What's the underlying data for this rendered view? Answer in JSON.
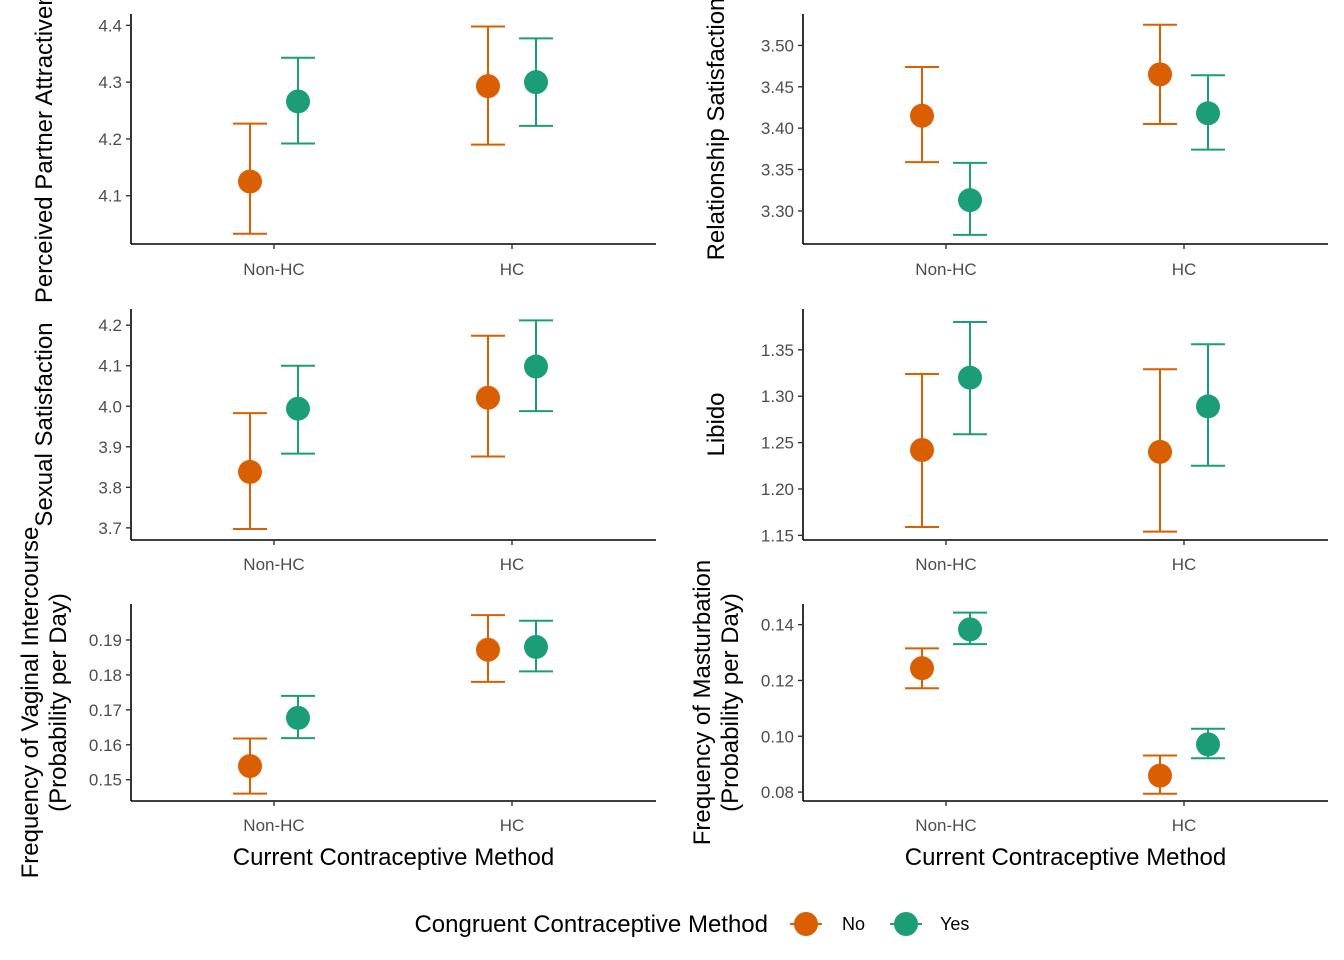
{
  "legend": {
    "title": "Congruent Contraceptive Method",
    "items": [
      {
        "label": "No",
        "color": "#D95F02"
      },
      {
        "label": "Yes",
        "color": "#1B9E77"
      }
    ]
  },
  "chart_data": [
    {
      "type": "scatter",
      "ylabel": [
        "Perceived Partner Attractiveness"
      ],
      "xlabel": "",
      "categories": [
        "Non-HC",
        "HC"
      ],
      "ylim": [
        4.015,
        4.42
      ],
      "yticks": [
        4.1,
        4.2,
        4.3,
        4.4
      ],
      "ytick_labels": [
        "4.1",
        "4.2",
        "4.3",
        "4.4"
      ],
      "series": [
        {
          "name": "No",
          "values": [
            4.125,
            4.293
          ],
          "lower": [
            4.033,
            4.19
          ],
          "upper": [
            4.227,
            4.398
          ]
        },
        {
          "name": "Yes",
          "values": [
            4.266,
            4.3
          ],
          "lower": [
            4.192,
            4.223
          ],
          "upper": [
            4.343,
            4.377
          ]
        }
      ]
    },
    {
      "type": "scatter",
      "ylabel": [
        "Relationship Satisfaction"
      ],
      "xlabel": "",
      "categories": [
        "Non-HC",
        "HC"
      ],
      "ylim": [
        3.26,
        3.538
      ],
      "yticks": [
        3.3,
        3.35,
        3.4,
        3.45,
        3.5
      ],
      "ytick_labels": [
        "3.30",
        "3.35",
        "3.40",
        "3.45",
        "3.50"
      ],
      "series": [
        {
          "name": "No",
          "values": [
            3.415,
            3.465
          ],
          "lower": [
            3.359,
            3.405
          ],
          "upper": [
            3.474,
            3.525
          ]
        },
        {
          "name": "Yes",
          "values": [
            3.313,
            3.418
          ],
          "lower": [
            3.271,
            3.374
          ],
          "upper": [
            3.358,
            3.464
          ]
        }
      ]
    },
    {
      "type": "scatter",
      "ylabel": [
        "Sexual Satisfaction"
      ],
      "xlabel": "",
      "categories": [
        "Non-HC",
        "HC"
      ],
      "ylim": [
        3.67,
        4.24
      ],
      "yticks": [
        3.7,
        3.8,
        3.9,
        4.0,
        4.1,
        4.2
      ],
      "ytick_labels": [
        "3.7",
        "3.8",
        "3.9",
        "4.0",
        "4.1",
        "4.2"
      ],
      "series": [
        {
          "name": "No",
          "values": [
            3.838,
            4.021
          ],
          "lower": [
            3.697,
            3.876
          ],
          "upper": [
            3.983,
            4.174
          ]
        },
        {
          "name": "Yes",
          "values": [
            3.994,
            4.098
          ],
          "lower": [
            3.883,
            3.988
          ],
          "upper": [
            4.1,
            4.212
          ]
        }
      ]
    },
    {
      "type": "scatter",
      "ylabel": [
        "Libido"
      ],
      "xlabel": "",
      "categories": [
        "Non-HC",
        "HC"
      ],
      "ylim": [
        1.145,
        1.394
      ],
      "yticks": [
        1.15,
        1.2,
        1.25,
        1.3,
        1.35
      ],
      "ytick_labels": [
        "1.15",
        "1.20",
        "1.25",
        "1.30",
        "1.35"
      ],
      "series": [
        {
          "name": "No",
          "values": [
            1.242,
            1.24
          ],
          "lower": [
            1.159,
            1.154
          ],
          "upper": [
            1.324,
            1.329
          ]
        },
        {
          "name": "Yes",
          "values": [
            1.32,
            1.289
          ],
          "lower": [
            1.259,
            1.225
          ],
          "upper": [
            1.38,
            1.356
          ]
        }
      ]
    },
    {
      "type": "scatter",
      "ylabel": [
        "Frequency of Vaginal Intercourse",
        "(Probability per Day)"
      ],
      "xlabel": "Current Contraceptive Method",
      "categories": [
        "Non-HC",
        "HC"
      ],
      "ylim": [
        0.1439,
        0.2003
      ],
      "yticks": [
        0.15,
        0.16,
        0.17,
        0.18,
        0.19
      ],
      "ytick_labels": [
        "0.15",
        "0.16",
        "0.17",
        "0.18",
        "0.19"
      ],
      "series": [
        {
          "name": "No",
          "values": [
            0.1539,
            0.1872
          ],
          "lower": [
            0.146,
            0.178
          ],
          "upper": [
            0.1618,
            0.1971
          ]
        },
        {
          "name": "Yes",
          "values": [
            0.1677,
            0.188
          ],
          "lower": [
            0.1619,
            0.181
          ],
          "upper": [
            0.174,
            0.1955
          ]
        }
      ]
    },
    {
      "type": "scatter",
      "ylabel": [
        "Frequency of Masturbation",
        "(Probability per Day)"
      ],
      "xlabel": "Current Contraceptive Method",
      "categories": [
        "Non-HC",
        "HC"
      ],
      "ylim": [
        0.0768,
        0.1474
      ],
      "yticks": [
        0.08,
        0.1,
        0.12,
        0.14
      ],
      "ytick_labels": [
        "0.08",
        "0.10",
        "0.12",
        "0.14"
      ],
      "series": [
        {
          "name": "No",
          "values": [
            0.1244,
            0.0859
          ],
          "lower": [
            0.1172,
            0.0794
          ],
          "upper": [
            0.1315,
            0.0931
          ]
        },
        {
          "name": "Yes",
          "values": [
            0.1383,
            0.0971
          ],
          "lower": [
            0.133,
            0.0921
          ],
          "upper": [
            0.1443,
            0.1027
          ]
        }
      ]
    }
  ]
}
